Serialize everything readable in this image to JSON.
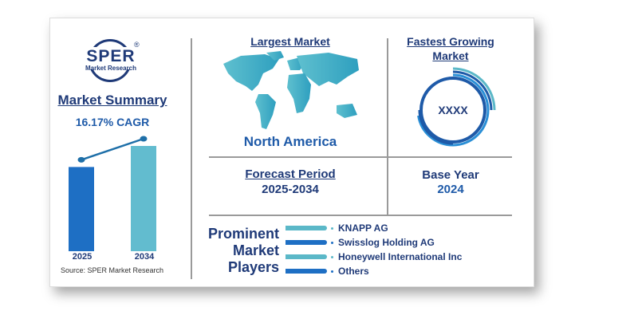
{
  "logo": {
    "name": "SPER",
    "sub": "Market Research",
    "registered": "®"
  },
  "summary": {
    "title": "Market Summary",
    "cagr": "16.17% CAGR",
    "source": "Source: SPER Market Research"
  },
  "chart_data": {
    "type": "bar",
    "categories": [
      "2025",
      "2034"
    ],
    "values": [
      1.0,
      1.25
    ],
    "title": "",
    "xlabel": "",
    "ylabel": "",
    "colors": [
      "#1e6fc4",
      "#62bccf"
    ]
  },
  "largest_market": {
    "title": "Largest Market",
    "value": "North America"
  },
  "fastest_growing": {
    "title_line1": "Fastest Growing",
    "title_line2": "Market",
    "value": "XXXX"
  },
  "forecast": {
    "title": "Forecast Period",
    "value": "2025-2034"
  },
  "base_year": {
    "title": "Base Year",
    "value": "2024"
  },
  "players": {
    "title_lines": [
      "Prominent",
      "Market",
      "Players"
    ],
    "items": [
      {
        "name": "KNAPP AG",
        "color": "#5bb8c8"
      },
      {
        "name": "Swisslog Holding AG",
        "color": "#1e6fc4"
      },
      {
        "name": "Honeywell International Inc",
        "color": "#5bb8c8"
      },
      {
        "name": "Others",
        "color": "#1e6fc4"
      }
    ]
  }
}
